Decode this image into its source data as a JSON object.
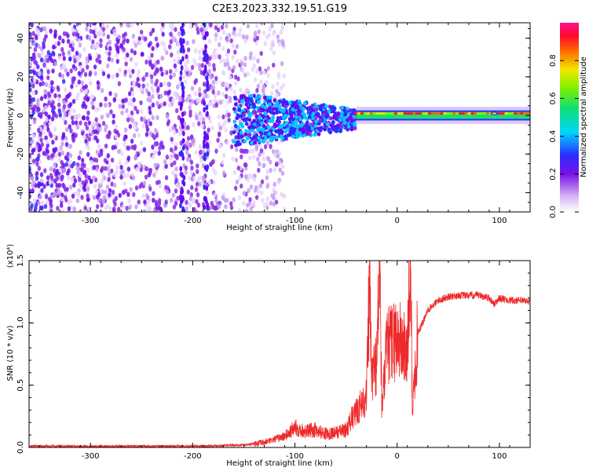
{
  "title": "C2E3.2023.332.19.51.G19",
  "chart_data": [
    {
      "type": "heatmap",
      "xlabel": "Height of straight line (km)",
      "ylabel": "Frequency (Hz)",
      "xlim": [
        -360,
        130
      ],
      "ylim": [
        -50,
        48
      ],
      "xticks": [
        -300,
        -200,
        -100,
        0,
        100
      ],
      "yticks": [
        -40,
        -20,
        0,
        20,
        40
      ],
      "colorbar": {
        "label": "Normalized spectral amplitude",
        "range": [
          0.0,
          1.0
        ],
        "ticks": [
          0.0,
          0.2,
          0.4,
          0.6,
          0.8
        ],
        "colormap": "white-purple-blue-cyan-green-yellow-red-magenta"
      },
      "features": {
        "scattered_noise_region_km": [
          -360,
          -110
        ],
        "broadening_region_km": [
          -160,
          -40
        ],
        "narrow_carrier_region_km": [
          -40,
          130
        ],
        "carrier_frequency_hz": 0
      }
    },
    {
      "type": "line",
      "xlabel": "Height of straight line (km)",
      "ylabel": "SNR (10 * v/v)",
      "y_scale_label": "(x10⁴)",
      "xlim": [
        -360,
        130
      ],
      "ylim": [
        0.0,
        1.5
      ],
      "xticks": [
        -300,
        -200,
        -100,
        0,
        100
      ],
      "yticks": [
        0.0,
        0.5,
        1.0,
        1.5
      ],
      "ytick_labels": [
        "0.0",
        "0.5",
        "1.0",
        "1.5"
      ],
      "series_color": "#ee2a2a",
      "series": [
        {
          "x": [
            -360,
            -300,
            -250,
            -200,
            -150,
            -130,
            -110,
            -100,
            -90,
            -80,
            -70,
            -60,
            -50,
            -45,
            -40,
            -35,
            -30,
            -27,
            -25,
            -20,
            -17,
            -15,
            -10,
            -5,
            0,
            5,
            10,
            13,
            15,
            20,
            25,
            30,
            40,
            50,
            60,
            70,
            80,
            90,
            95,
            100,
            110,
            120,
            130
          ],
          "y": [
            0.01,
            0.01,
            0.01,
            0.01,
            0.02,
            0.04,
            0.09,
            0.16,
            0.13,
            0.14,
            0.11,
            0.12,
            0.14,
            0.22,
            0.28,
            0.35,
            0.42,
            1.3,
            0.55,
            0.7,
            1.48,
            0.3,
            0.8,
            0.85,
            0.88,
            0.82,
            0.75,
            1.5,
            0.28,
            0.92,
            1.0,
            1.1,
            1.18,
            1.21,
            1.22,
            1.22,
            1.22,
            1.2,
            1.15,
            1.2,
            1.18,
            1.18,
            1.17
          ]
        }
      ]
    }
  ]
}
